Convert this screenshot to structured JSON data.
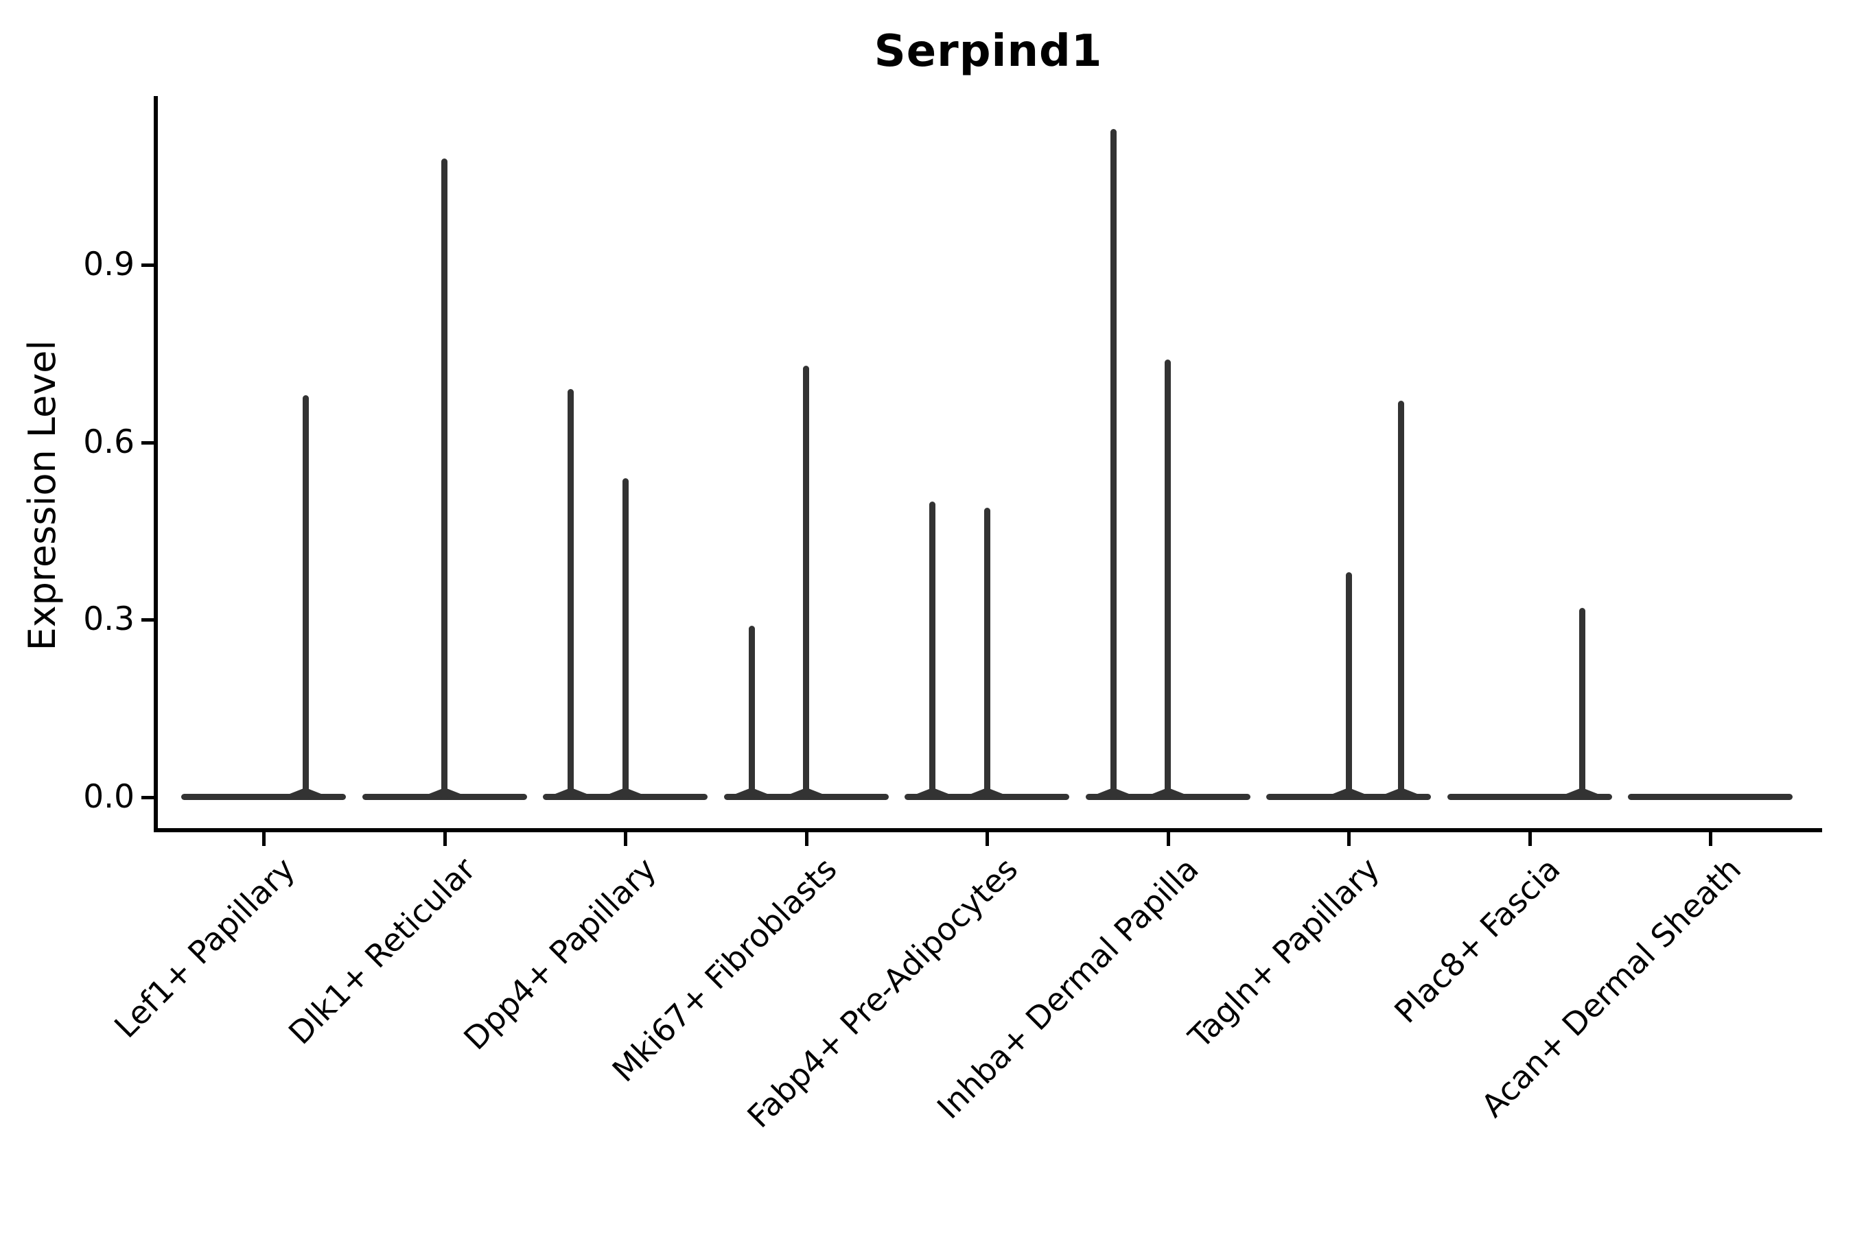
{
  "chart_data": {
    "type": "violin",
    "title": "Serpind1",
    "ylabel": "Expression Level",
    "xlabel": "",
    "grid": false,
    "legend": false,
    "ylim": [
      -0.06,
      1.18
    ],
    "yticks": [
      {
        "label": "0.0",
        "value": 0.0
      },
      {
        "label": "0.3",
        "value": 0.3
      },
      {
        "label": "0.6",
        "value": 0.6
      },
      {
        "label": "0.9",
        "value": 0.9
      }
    ],
    "categories": [
      "Lef1+ Papillary",
      "Dlk1+ Reticular",
      "Dpp4+ Papillary",
      "Mki67+ Fibroblasts",
      "Fabp4+ Pre-Adipocytes",
      "Inhba+ Dermal Papilla",
      "Tagln+ Papillary",
      "Plac8+ Fascia",
      "Acan+ Dermal Sheath"
    ],
    "violins": [
      {
        "category": "Lef1+ Papillary",
        "baseline_value": 0.0,
        "spikes": [
          {
            "value": 0.68,
            "x_offset": 0.51
          }
        ]
      },
      {
        "category": "Dlk1+ Reticular",
        "baseline_value": 0.0,
        "spikes": [
          {
            "value": 1.08,
            "x_offset": 0.0
          }
        ]
      },
      {
        "category": "Dpp4+ Papillary",
        "baseline_value": 0.0,
        "spikes": [
          {
            "value": 0.69,
            "x_offset": -0.66
          },
          {
            "value": 0.54,
            "x_offset": 0.0
          }
        ]
      },
      {
        "category": "Mki67+ Fibroblasts",
        "baseline_value": 0.0,
        "spikes": [
          {
            "value": 0.29,
            "x_offset": -0.66
          },
          {
            "value": 0.73,
            "x_offset": 0.0
          }
        ]
      },
      {
        "category": "Fabp4+ Pre-Adipocytes",
        "baseline_value": 0.0,
        "spikes": [
          {
            "value": 0.5,
            "x_offset": -0.66
          },
          {
            "value": 0.49,
            "x_offset": 0.0
          }
        ]
      },
      {
        "category": "Inhba+ Dermal Papilla",
        "baseline_value": 0.0,
        "spikes": [
          {
            "value": 1.13,
            "x_offset": -0.66
          },
          {
            "value": 0.74,
            "x_offset": 0.0
          }
        ]
      },
      {
        "category": "Tagln+ Papillary",
        "baseline_value": 0.0,
        "spikes": [
          {
            "value": 0.38,
            "x_offset": 0.0
          },
          {
            "value": 0.67,
            "x_offset": 0.64
          }
        ]
      },
      {
        "category": "Plac8+ Fascia",
        "baseline_value": 0.0,
        "spikes": [
          {
            "value": 0.32,
            "x_offset": 0.64
          }
        ]
      },
      {
        "category": "Acan+ Dermal Sheath",
        "baseline_value": 0.0,
        "spikes": []
      }
    ],
    "colors": {
      "violin_stroke": "#333333",
      "axis": "#000000",
      "background": "#ffffff",
      "text": "#000000"
    }
  }
}
